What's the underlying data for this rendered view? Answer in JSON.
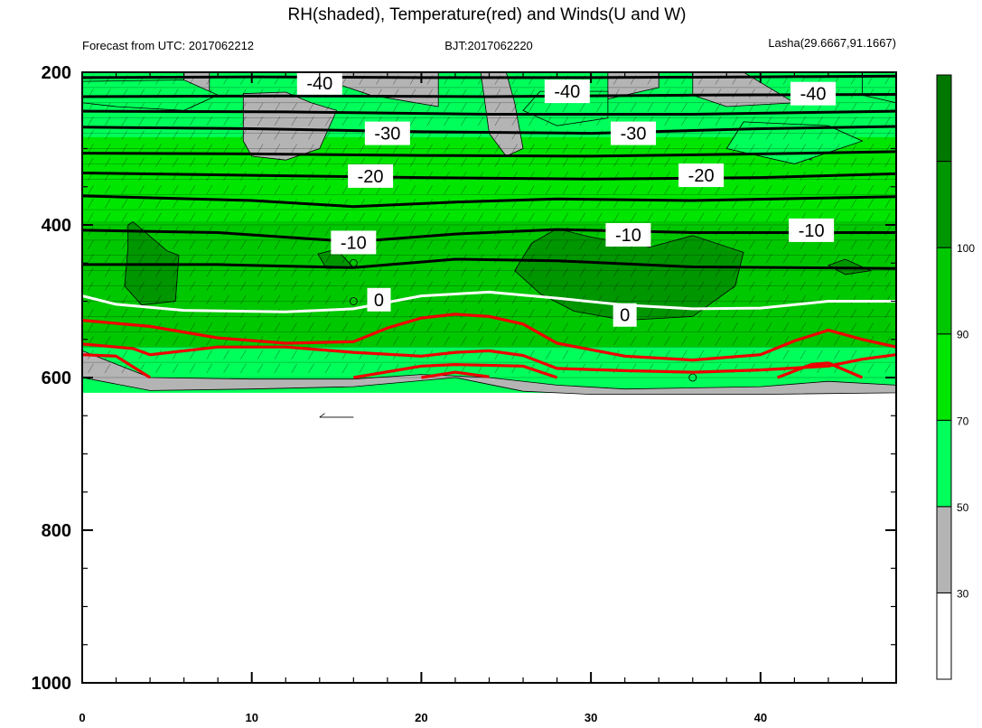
{
  "title": "RH(shaded), Temperature(red) and Winds(U and W)",
  "subtitle_left": "Forecast from UTC: 2017062212",
  "subtitle_center": "BJT:2017062220",
  "subtitle_right": "Lasha(29.6667,91.1667)",
  "chart_data": {
    "type": "contour",
    "x_ticks": [
      0,
      10,
      20,
      30,
      40
    ],
    "xlim": [
      0,
      48
    ],
    "y_ticks": [
      200,
      400,
      600,
      800,
      1000
    ],
    "ylim": [
      200,
      1000
    ],
    "y_reversed": true,
    "colorbar": {
      "levels": [
        30,
        50,
        70,
        90,
        100
      ],
      "colors": [
        "#ffffff",
        "#b4b4b4",
        "#00ff5a",
        "#00e600",
        "#00c800",
        "#009600",
        "#007800"
      ]
    },
    "temperature_labels": [
      "-40",
      "-30",
      "-20",
      "-10",
      "0"
    ],
    "isotherms": [
      {
        "label": "-40",
        "points": [
          [
            0,
            207
          ],
          [
            10,
            206
          ],
          [
            20,
            207
          ],
          [
            30,
            207
          ],
          [
            40,
            206
          ],
          [
            48,
            205
          ]
        ]
      },
      {
        "label": "-40",
        "points": [
          [
            0,
            232
          ],
          [
            12,
            231
          ],
          [
            24,
            232
          ],
          [
            36,
            230
          ],
          [
            48,
            229
          ]
        ]
      },
      {
        "label": "-40",
        "points": [
          [
            0,
            251
          ],
          [
            12,
            252
          ],
          [
            24,
            255
          ],
          [
            36,
            255
          ],
          [
            48,
            251
          ]
        ]
      },
      {
        "label": "-30",
        "points": [
          [
            0,
            272
          ],
          [
            10,
            274
          ],
          [
            20,
            278
          ],
          [
            30,
            280
          ],
          [
            40,
            274
          ],
          [
            48,
            271
          ]
        ]
      },
      {
        "label": "-30",
        "points": [
          [
            0,
            306
          ],
          [
            10,
            307
          ],
          [
            20,
            309
          ],
          [
            30,
            310
          ],
          [
            40,
            307
          ],
          [
            48,
            304
          ]
        ]
      },
      {
        "label": "-20",
        "points": [
          [
            0,
            332
          ],
          [
            10,
            335
          ],
          [
            20,
            338
          ],
          [
            30,
            340
          ],
          [
            40,
            338
          ],
          [
            48,
            333
          ]
        ]
      },
      {
        "label": "-20",
        "points": [
          [
            0,
            362
          ],
          [
            10,
            368
          ],
          [
            16,
            376
          ],
          [
            22,
            370
          ],
          [
            28,
            366
          ],
          [
            36,
            368
          ],
          [
            48,
            363
          ]
        ]
      },
      {
        "label": "-10",
        "points": [
          [
            0,
            407
          ],
          [
            8,
            410
          ],
          [
            16,
            422
          ],
          [
            22,
            412
          ],
          [
            28,
            406
          ],
          [
            36,
            410
          ],
          [
            48,
            410
          ]
        ]
      },
      {
        "label": "-10",
        "points": [
          [
            0,
            452
          ],
          [
            8,
            452
          ],
          [
            16,
            456
          ],
          [
            22,
            445
          ],
          [
            28,
            447
          ],
          [
            36,
            455
          ],
          [
            48,
            457
          ]
        ]
      },
      {
        "label": "0",
        "points": [
          [
            0,
            493
          ],
          [
            2,
            504
          ],
          [
            6,
            512
          ],
          [
            12,
            514
          ],
          [
            16,
            510
          ],
          [
            20,
            493
          ],
          [
            24,
            488
          ],
          [
            28,
            496
          ],
          [
            32,
            505
          ],
          [
            36,
            510
          ],
          [
            40,
            509
          ],
          [
            44,
            500
          ],
          [
            48,
            500
          ]
        ]
      }
    ],
    "red_contours": [
      [
        [
          0,
          525
        ],
        [
          4,
          533
        ],
        [
          8,
          548
        ],
        [
          12,
          555
        ],
        [
          16,
          553
        ],
        [
          18,
          535
        ],
        [
          20,
          522
        ],
        [
          22,
          517
        ],
        [
          24,
          520
        ],
        [
          26,
          530
        ],
        [
          28,
          555
        ],
        [
          32,
          572
        ],
        [
          36,
          577
        ],
        [
          40,
          570
        ],
        [
          42,
          552
        ],
        [
          44,
          538
        ],
        [
          46,
          550
        ],
        [
          48,
          560
        ]
      ],
      [
        [
          0,
          556
        ],
        [
          3,
          562
        ],
        [
          4,
          570
        ],
        [
          8,
          560
        ],
        [
          12,
          560
        ],
        [
          16,
          567
        ],
        [
          20,
          572
        ],
        [
          22,
          567
        ],
        [
          24,
          565
        ],
        [
          26,
          571
        ],
        [
          28,
          588
        ],
        [
          32,
          591
        ],
        [
          36,
          593
        ],
        [
          40,
          590
        ],
        [
          44,
          585
        ],
        [
          46,
          576
        ],
        [
          48,
          570
        ]
      ],
      [
        [
          0,
          570
        ],
        [
          2,
          572
        ],
        [
          4,
          600
        ]
      ],
      [
        [
          16,
          600
        ],
        [
          20,
          585
        ],
        [
          22,
          583
        ],
        [
          26,
          585
        ],
        [
          28,
          600
        ]
      ],
      [
        [
          20,
          600
        ],
        [
          22,
          593
        ],
        [
          24,
          599
        ]
      ],
      [
        [
          41,
          600
        ],
        [
          43,
          583
        ],
        [
          44,
          581
        ],
        [
          46,
          600
        ]
      ]
    ],
    "title": "RH(shaded), Temperature(red) and Winds(U and W)"
  }
}
